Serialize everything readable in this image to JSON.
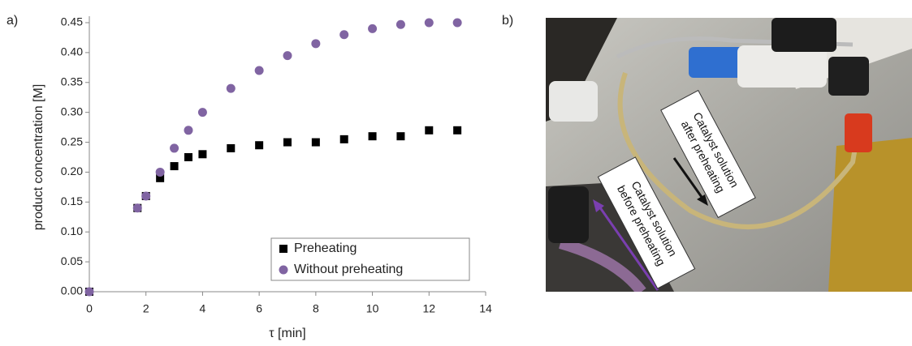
{
  "chart_data": {
    "type": "scatter",
    "panel_label": "a)",
    "xlabel": "τ [min]",
    "ylabel": "product concentration  [M]",
    "xlim": [
      0,
      14
    ],
    "xticks": [
      0,
      2,
      4,
      6,
      8,
      10,
      12,
      14
    ],
    "ylim": [
      0,
      0.45
    ],
    "yticks": [
      {
        "value": 0,
        "label": "0.00"
      },
      0.05,
      {
        "value": 0.1,
        "label": "0.10"
      },
      0.15,
      {
        "value": 0.2,
        "label": "0.20"
      },
      0.25,
      {
        "value": 0.3,
        "label": "0.30"
      },
      0.35,
      {
        "value": 0.4,
        "label": "0.40"
      },
      0.45
    ],
    "legend": "lower right",
    "series": [
      {
        "name": "Preheating",
        "color": "#000000",
        "marker": "square",
        "x": [
          0,
          1.7,
          2,
          2.5,
          3,
          3.5,
          4,
          5,
          6,
          7,
          8,
          9,
          10,
          11,
          12,
          13
        ],
        "values": [
          0,
          0.14,
          0.16,
          0.19,
          0.21,
          0.225,
          0.23,
          0.24,
          0.245,
          0.25,
          0.25,
          0.255,
          0.26,
          0.26,
          0.27,
          0.27
        ]
      },
      {
        "name": "Without preheating",
        "color": "#8064a2",
        "marker": "circle",
        "x": [
          0,
          1.7,
          2,
          2.5,
          3,
          3.5,
          4,
          5,
          6,
          7,
          8,
          9,
          10,
          11,
          12,
          13
        ],
        "values": [
          0,
          0.14,
          0.16,
          0.2,
          0.24,
          0.27,
          0.3,
          0.34,
          0.37,
          0.395,
          0.415,
          0.43,
          0.44,
          0.447,
          0.45,
          0.45
        ]
      }
    ]
  },
  "photo": {
    "panel_label": "b)",
    "annotations": [
      {
        "lines": [
          "Catalyst solution",
          "after preheating"
        ]
      },
      {
        "lines": [
          "Catalyst solution",
          "before preheating"
        ]
      }
    ]
  }
}
